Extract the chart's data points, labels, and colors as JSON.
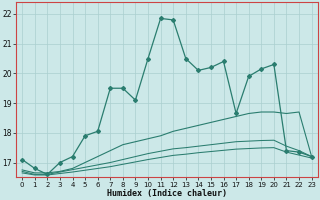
{
  "xlabel": "Humidex (Indice chaleur)",
  "x": [
    0,
    1,
    2,
    3,
    4,
    5,
    6,
    7,
    8,
    9,
    10,
    11,
    12,
    13,
    14,
    15,
    16,
    17,
    18,
    19,
    20,
    21,
    22,
    23
  ],
  "line1": [
    17.1,
    16.8,
    16.6,
    17.0,
    17.2,
    17.9,
    18.05,
    19.5,
    19.5,
    19.1,
    20.5,
    21.85,
    21.8,
    20.5,
    20.1,
    20.2,
    20.4,
    18.65,
    19.9,
    20.15,
    20.3,
    17.4,
    17.35,
    17.2
  ],
  "line2": [
    16.75,
    16.65,
    16.65,
    16.7,
    16.8,
    17.0,
    17.2,
    17.4,
    17.6,
    17.7,
    17.8,
    17.9,
    18.05,
    18.15,
    18.25,
    18.35,
    18.45,
    18.55,
    18.65,
    18.7,
    18.7,
    18.65,
    18.7,
    17.2
  ],
  "line3_top": [
    16.7,
    16.6,
    16.6,
    16.68,
    16.76,
    16.84,
    16.92,
    17.0,
    17.1,
    17.2,
    17.3,
    17.38,
    17.46,
    17.5,
    17.55,
    17.6,
    17.65,
    17.7,
    17.72,
    17.74,
    17.75,
    17.55,
    17.4,
    17.2
  ],
  "line3_bot": [
    16.65,
    16.58,
    16.58,
    16.63,
    16.68,
    16.74,
    16.8,
    16.86,
    16.94,
    17.02,
    17.1,
    17.17,
    17.24,
    17.28,
    17.33,
    17.37,
    17.41,
    17.45,
    17.47,
    17.49,
    17.5,
    17.35,
    17.25,
    17.15
  ],
  "line_color": "#2a7d6f",
  "bg_color": "#cce8e8",
  "grid_color": "#aacfcf",
  "spine_color": "#cc4444",
  "ylim": [
    16.5,
    22.4
  ],
  "yticks": [
    17,
    18,
    19,
    20,
    21,
    22
  ],
  "marker": "D",
  "markersize": 2.0
}
